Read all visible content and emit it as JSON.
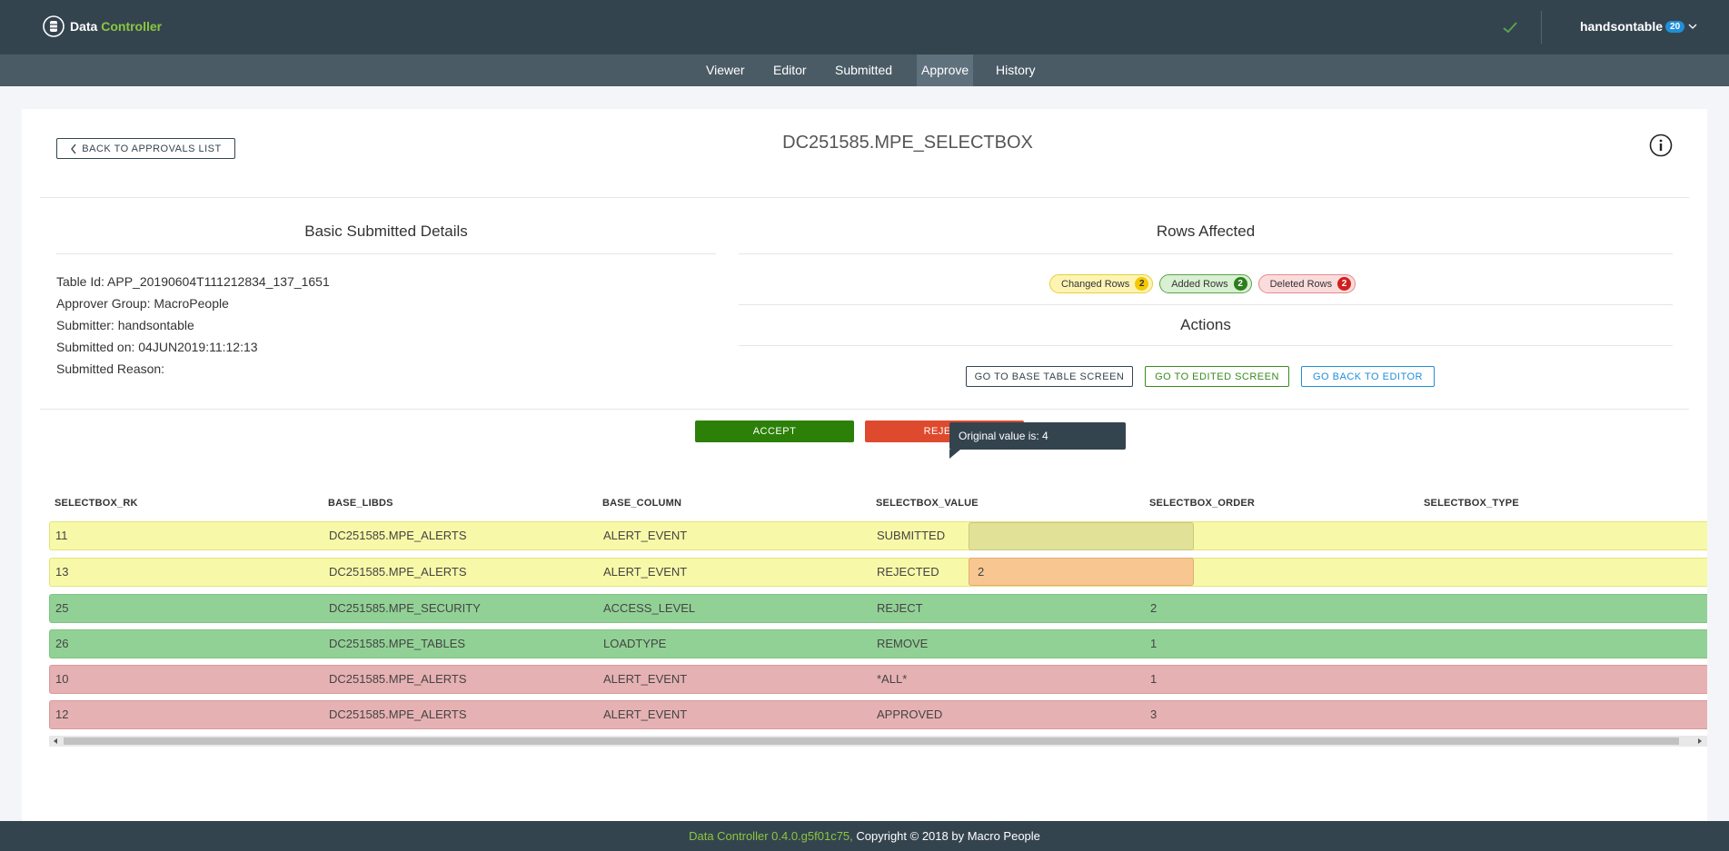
{
  "app": {
    "name_part1": "Data ",
    "name_part2": "Controller"
  },
  "header": {
    "username": "handsontable",
    "user_badge": "20"
  },
  "nav": {
    "tabs": [
      "Viewer",
      "Editor",
      "Submitted",
      "Approve",
      "History"
    ],
    "active": "Approve"
  },
  "page": {
    "back_label": "BACK TO APPROVALS LIST",
    "title": "DC251585.MPE_SELECTBOX"
  },
  "details": {
    "heading": "Basic Submitted Details",
    "table_id": "Table Id: APP_20190604T111212834_137_1651",
    "approver_group": "Approver Group: MacroPeople",
    "submitter": "Submitter: handsontable",
    "submitted_on": "Submitted on: 04JUN2019:11:12:13",
    "submitted_reason": "Submitted Reason:"
  },
  "rows_affected": {
    "heading": "Rows Affected",
    "changed_label": "Changed Rows",
    "changed_count": "2",
    "added_label": "Added Rows",
    "added_count": "2",
    "deleted_label": "Deleted Rows",
    "deleted_count": "2"
  },
  "actions": {
    "heading": "Actions",
    "base_table": "GO TO BASE TABLE SCREEN",
    "edited": "GO TO EDITED SCREEN",
    "back_editor": "GO BACK TO EDITOR"
  },
  "decision": {
    "accept": "ACCEPT",
    "reject": "REJECT"
  },
  "table": {
    "columns": [
      "SELECTBOX_RK",
      "BASE_LIBDS",
      "BASE_COLUMN",
      "SELECTBOX_VALUE",
      "SELECTBOX_ORDER",
      "SELECTBOX_TYPE"
    ],
    "rows": [
      {
        "status": "changed",
        "cells": [
          "11",
          "DC251585.MPE_ALERTS",
          "ALERT_EVENT",
          "SUBMITTED",
          "",
          ""
        ]
      },
      {
        "status": "changed",
        "cells": [
          "13",
          "DC251585.MPE_ALERTS",
          "ALERT_EVENT",
          "REJECTED",
          "2",
          ""
        ]
      },
      {
        "status": "added",
        "cells": [
          "25",
          "DC251585.MPE_SECURITY",
          "ACCESS_LEVEL",
          "REJECT",
          "2",
          ""
        ]
      },
      {
        "status": "added",
        "cells": [
          "26",
          "DC251585.MPE_TABLES",
          "LOADTYPE",
          "REMOVE",
          "1",
          ""
        ]
      },
      {
        "status": "deleted",
        "cells": [
          "10",
          "DC251585.MPE_ALERTS",
          "ALERT_EVENT",
          "*ALL*",
          "1",
          ""
        ]
      },
      {
        "status": "deleted",
        "cells": [
          "12",
          "DC251585.MPE_ALERTS",
          "ALERT_EVENT",
          "APPROVED",
          "3",
          ""
        ]
      }
    ],
    "tooltip": "Original value is: 4"
  },
  "footer": {
    "version": "Data Controller 0.4.0.g5f01c75,",
    "copyright": " Copyright © 2018 by Macro People"
  }
}
